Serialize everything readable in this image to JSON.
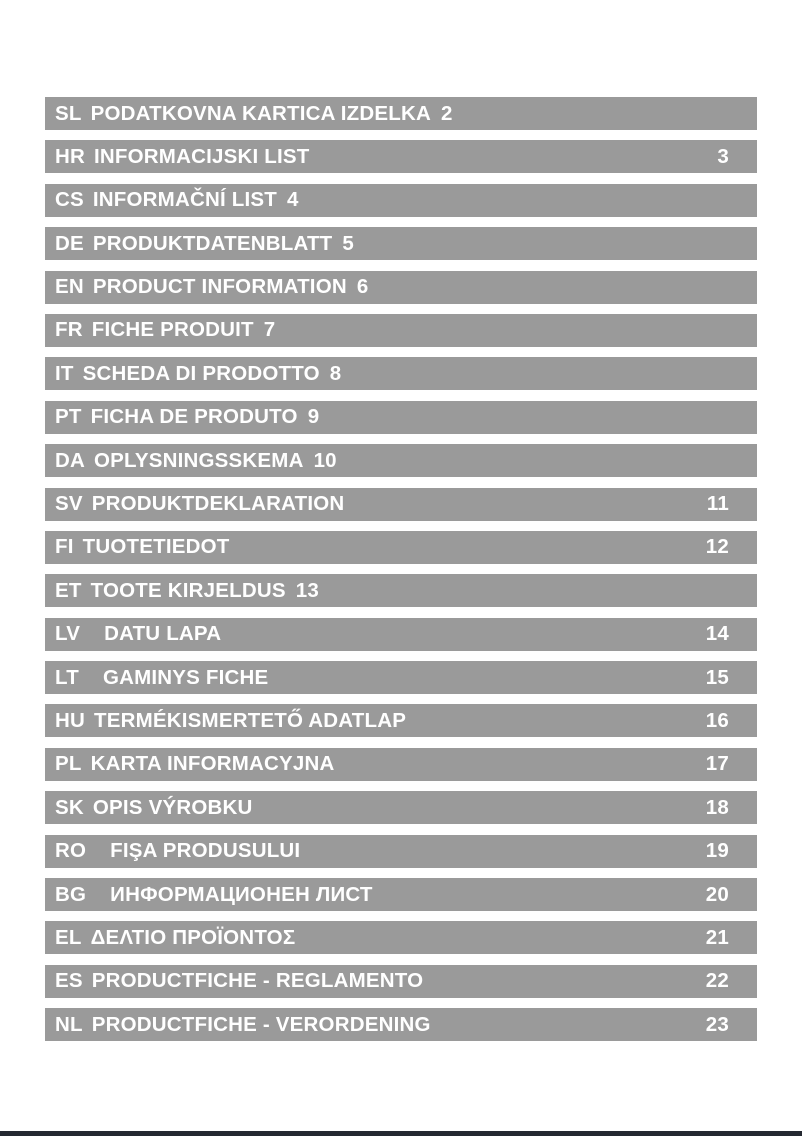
{
  "page": {
    "background_color": "#ffffff"
  },
  "toc": {
    "bar_color": "#9a9a9a",
    "text_color": "#ffffff",
    "rows": [
      {
        "code": "SL",
        "title": "PODATKOVNA KARTICA IZDELKA",
        "page": "2",
        "page_position": "inline",
        "gap": "normal"
      },
      {
        "code": "HR",
        "title": "INFORMACIJSKI LIST",
        "page": "3",
        "page_position": "right",
        "gap": "normal"
      },
      {
        "code": "CS",
        "title": "INFORMAČNÍ LIST",
        "page": "4",
        "page_position": "inline",
        "gap": "normal"
      },
      {
        "code": "DE",
        "title": "PRODUKTDATENBLATT",
        "page": "5",
        "page_position": "inline",
        "gap": "normal"
      },
      {
        "code": "EN",
        "title": "PRODUCT INFORMATION",
        "page": "6",
        "page_position": "inline",
        "gap": "normal"
      },
      {
        "code": "FR",
        "title": "FICHE PRODUIT",
        "page": "7",
        "page_position": "inline",
        "gap": "normal"
      },
      {
        "code": "IT",
        "title": "SCHEDA DI PRODOTTO",
        "page": "8",
        "page_position": "inline",
        "gap": "normal"
      },
      {
        "code": "PT",
        "title": "FICHA DE PRODUTO",
        "page": "9",
        "page_position": "inline",
        "gap": "normal"
      },
      {
        "code": "DA",
        "title": "OPLYSNINGSSKEMA",
        "page": "10",
        "page_position": "inline",
        "gap": "normal"
      },
      {
        "code": "SV",
        "title": "PRODUKTDEKLARATION",
        "page": "11",
        "page_position": "right",
        "gap": "normal"
      },
      {
        "code": "FI",
        "title": "TUOTETIEDOT",
        "page": "12",
        "page_position": "right",
        "gap": "normal"
      },
      {
        "code": "ET",
        "title": "TOOTE KIRJELDUS",
        "page": "13",
        "page_position": "inline",
        "gap": "normal"
      },
      {
        "code": "LV",
        "title": "DATU LAPA",
        "page": "14",
        "page_position": "right",
        "gap": "wide"
      },
      {
        "code": "LT",
        "title": "GAMINYS FICHE",
        "page": "15",
        "page_position": "right",
        "gap": "wide"
      },
      {
        "code": "HU",
        "title": "TERMÉKISMERTETŐ ADATLAP",
        "page": "16",
        "page_position": "right",
        "gap": "normal"
      },
      {
        "code": "PL",
        "title": "KARTA INFORMACYJNA",
        "page": "17",
        "page_position": "right",
        "gap": "normal"
      },
      {
        "code": "SK",
        "title": "OPIS VÝROBKU",
        "page": "18",
        "page_position": "right",
        "gap": "normal"
      },
      {
        "code": "RO",
        "title": "FIŞA PRODUSULUI",
        "page": "19",
        "page_position": "right",
        "gap": "wide"
      },
      {
        "code": "BG",
        "title": "ИНФОРМАЦИОНЕН ЛИСТ",
        "page": "20",
        "page_position": "right",
        "gap": "wide"
      },
      {
        "code": "EL",
        "title": "ΔΕΛΤΙΟ ΠΡΟΪΟΝΤΟΣ",
        "page": "21",
        "page_position": "right",
        "gap": "normal"
      },
      {
        "code": "ES",
        "title": "PRODUCTFICHE - REGLAMENTO",
        "page": "22",
        "page_position": "right",
        "gap": "normal"
      },
      {
        "code": "NL",
        "title": "PRODUCTFICHE - VERORDENING",
        "page": "23",
        "page_position": "right",
        "gap": "normal"
      }
    ]
  },
  "footer": {
    "bottom_bar_color": "#242931"
  }
}
